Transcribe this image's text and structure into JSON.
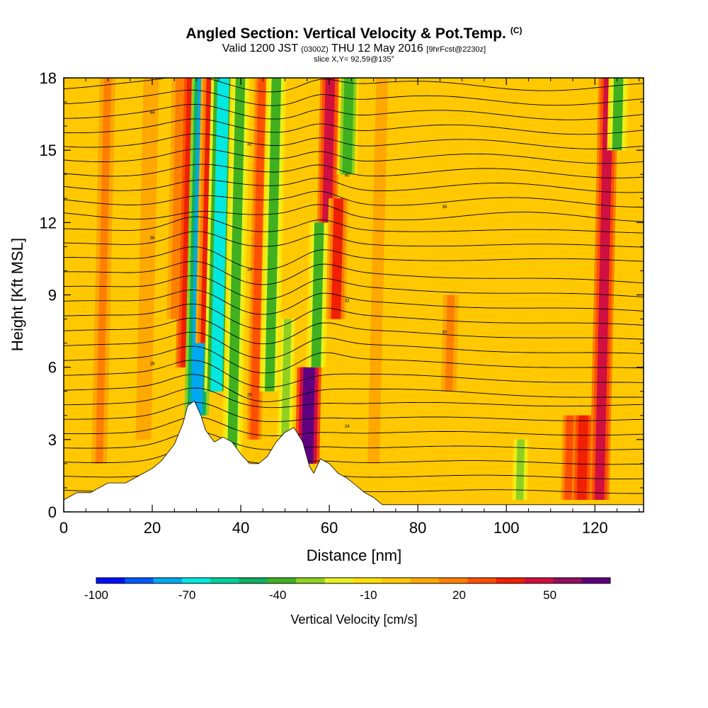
{
  "header": {
    "title": "Angled Section: Vertical Velocity & Pot.Temp.",
    "title_unit": "(C)",
    "valid_prefix": "Valid 1200 JST",
    "valid_utc": "(0300Z)",
    "valid_date": "THU 12 May 2016",
    "forecast": "[9hrFcst@2230z]",
    "slice": "slice X,Y= 92,59@135°"
  },
  "chart_data": {
    "type": "heatmap",
    "xlabel": "Distance [nm]",
    "ylabel": "Height [Kft MSL]",
    "xlim": [
      0,
      131
    ],
    "ylim": [
      0,
      18
    ],
    "xticks": [
      "0",
      "20",
      "40",
      "60",
      "80",
      "100",
      "120"
    ],
    "yticks": [
      "0",
      "3",
      "6",
      "9",
      "12",
      "15",
      "18"
    ],
    "colorbar": {
      "label": "Vertical Velocity [cm/s]",
      "tick_labels": [
        "-100",
        "-70",
        "-40",
        "-10",
        "20",
        "50"
      ],
      "tick_values": [
        -100,
        -70,
        -40,
        -10,
        20,
        50
      ],
      "range": [
        -100,
        70
      ],
      "colors": [
        "#0010ff",
        "#0058ff",
        "#00a8f0",
        "#00e8e0",
        "#00d09a",
        "#10b060",
        "#40b020",
        "#90d020",
        "#e8f020",
        "#ffe000",
        "#ffc800",
        "#ffa800",
        "#ff8000",
        "#ff5000",
        "#f02000",
        "#d01040",
        "#901060",
        "#600080"
      ]
    },
    "base_field_value": 0,
    "vertical_velocity_features": [
      {
        "x": 8,
        "z_bottom": 2,
        "z_top": 18,
        "value": 15
      },
      {
        "x": 18,
        "z_bottom": 3,
        "z_top": 18,
        "value": 12
      },
      {
        "x": 25,
        "z_bottom": 8,
        "z_top": 18,
        "value": 15
      },
      {
        "x": 27.5,
        "z_bottom": 6,
        "z_top": 18,
        "value": 40
      },
      {
        "x": 30,
        "z_bottom": 4,
        "z_top": 18,
        "value": -75
      },
      {
        "x": 32,
        "z_bottom": 7,
        "z_top": 18,
        "value": 35
      },
      {
        "x": 34.5,
        "z_bottom": 5,
        "z_top": 18,
        "value": -65
      },
      {
        "x": 38,
        "z_bottom": 2,
        "z_top": 18,
        "value": -35
      },
      {
        "x": 43,
        "z_bottom": 3,
        "z_top": 18,
        "value": 25
      },
      {
        "x": 46.5,
        "z_bottom": 5,
        "z_top": 18,
        "value": -35
      },
      {
        "x": 50,
        "z_bottom": 3,
        "z_top": 8,
        "value": -30
      },
      {
        "x": 55,
        "z_bottom": 2,
        "z_top": 6,
        "value": 70
      },
      {
        "x": 57,
        "z_bottom": 6,
        "z_top": 12,
        "value": -35
      },
      {
        "x": 59.5,
        "z_bottom": 12,
        "z_top": 18,
        "value": 45
      },
      {
        "x": 61.5,
        "z_bottom": 8,
        "z_top": 13,
        "value": 35
      },
      {
        "x": 64,
        "z_bottom": 14,
        "z_top": 18,
        "value": -40
      },
      {
        "x": 70,
        "z_bottom": 2,
        "z_top": 18,
        "value": 10
      },
      {
        "x": 87,
        "z_bottom": 5,
        "z_top": 9,
        "value": 15
      },
      {
        "x": 103,
        "z_bottom": 0.5,
        "z_top": 3,
        "value": -30
      },
      {
        "x": 114,
        "z_bottom": 0.5,
        "z_top": 4,
        "value": 30
      },
      {
        "x": 117,
        "z_bottom": 0.5,
        "z_top": 4,
        "value": 40
      },
      {
        "x": 121,
        "z_bottom": 0.5,
        "z_top": 18,
        "value": 45
      },
      {
        "x": 125,
        "z_bottom": 15,
        "z_top": 18,
        "value": -35
      }
    ],
    "isentrope_labels": [
      "44",
      "42",
      "40",
      "38",
      "36",
      "34",
      "32",
      "30",
      "28",
      "26",
      "24"
    ],
    "terrain_profile": [
      [
        0,
        0.5
      ],
      [
        3,
        0.8
      ],
      [
        6,
        0.8
      ],
      [
        10,
        1.2
      ],
      [
        14,
        1.2
      ],
      [
        17,
        1.5
      ],
      [
        20,
        1.8
      ],
      [
        22,
        2.1
      ],
      [
        25,
        2.8
      ],
      [
        27,
        3.7
      ],
      [
        28,
        4.4
      ],
      [
        29.5,
        4.6
      ],
      [
        31,
        4.0
      ],
      [
        32,
        3.4
      ],
      [
        34,
        2.9
      ],
      [
        36,
        3.1
      ],
      [
        38,
        2.9
      ],
      [
        40,
        2.4
      ],
      [
        42,
        2.0
      ],
      [
        44,
        2.0
      ],
      [
        46,
        2.3
      ],
      [
        48,
        2.9
      ],
      [
        50,
        3.3
      ],
      [
        52,
        3.5
      ],
      [
        54,
        2.9
      ],
      [
        55.5,
        1.9
      ],
      [
        56.5,
        1.6
      ],
      [
        58,
        2.2
      ],
      [
        60,
        2.0
      ],
      [
        62,
        1.6
      ],
      [
        64,
        1.4
      ],
      [
        66,
        1.1
      ],
      [
        68,
        0.8
      ],
      [
        70,
        0.6
      ],
      [
        72,
        0.3
      ],
      [
        75,
        0.3
      ],
      [
        131,
        0.3
      ]
    ]
  }
}
